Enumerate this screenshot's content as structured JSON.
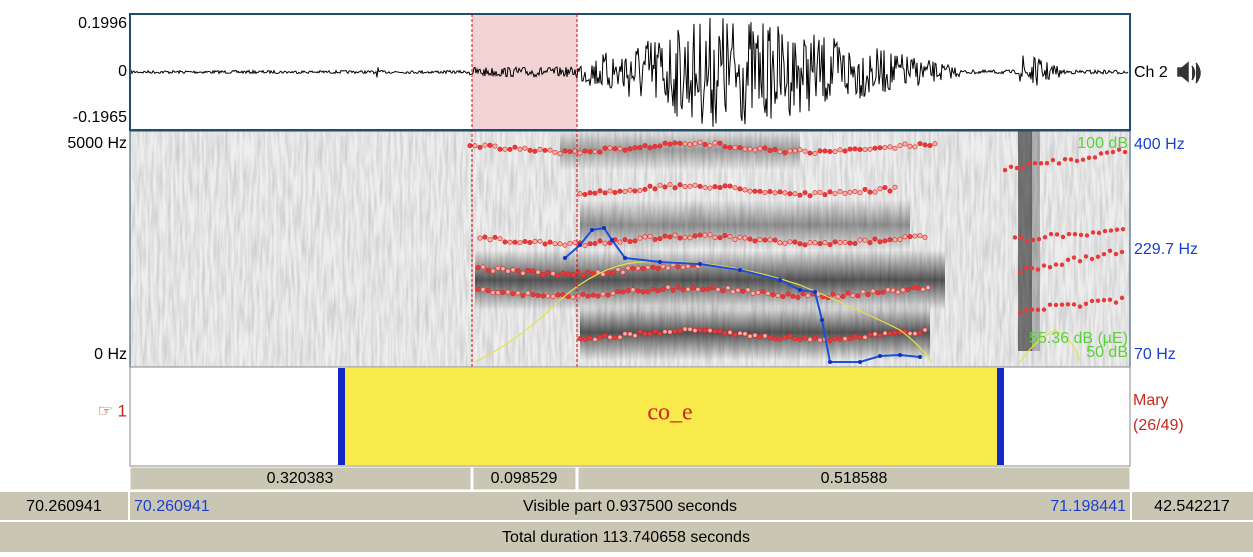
{
  "waveform": {
    "top": "0.1996",
    "zero": "0",
    "bottom": "-0.1965",
    "channel": "Ch 2"
  },
  "spectrogram": {
    "top": "5000 Hz",
    "bottom": "0 Hz",
    "intensity_top": "100 dB",
    "intensity_mid": "55.36 dB (µE)",
    "intensity_bottom": "50 dB",
    "pitch_top": "400 Hz",
    "pitch_mid": "229.7 Hz",
    "pitch_bottom": "70 Hz"
  },
  "tier": {
    "number": "☞ 1",
    "label": "co_e",
    "name": "Mary",
    "count": "(26/49)"
  },
  "durations": [
    "0.320383",
    "0.098529",
    "0.518588"
  ],
  "window": {
    "start": "70.260941",
    "visible_start": "70.260941",
    "visible": "Visible part 0.937500 seconds",
    "visible_end": "71.198441",
    "end": "42.542217",
    "total": "Total duration 113.740658 seconds"
  }
}
